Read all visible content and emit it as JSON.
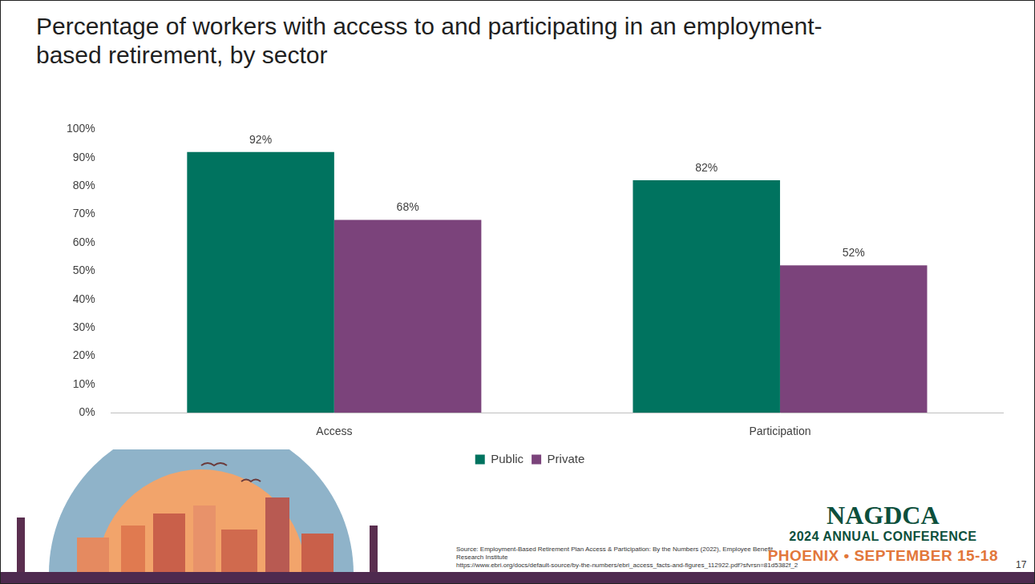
{
  "chart_data": {
    "type": "bar",
    "title": "Percentage of workers with access to and participating in an employment-based retirement, by sector",
    "categories": [
      "Access",
      "Participation"
    ],
    "series": [
      {
        "name": "Public",
        "color": "#00735f",
        "values": [
          92,
          82
        ],
        "value_labels": [
          "92%",
          "82%"
        ]
      },
      {
        "name": "Private",
        "color": "#7b437b",
        "values": [
          68,
          52
        ],
        "value_labels": [
          "68%",
          "52%"
        ]
      }
    ],
    "ylim": [
      0,
      100
    ],
    "yticks": [
      {
        "value": 0,
        "label": "0%"
      },
      {
        "value": 10,
        "label": "10%"
      },
      {
        "value": 20,
        "label": "20%"
      },
      {
        "value": 30,
        "label": "30%"
      },
      {
        "value": 40,
        "label": "40%"
      },
      {
        "value": 50,
        "label": "50%"
      },
      {
        "value": 60,
        "label": "60%"
      },
      {
        "value": 70,
        "label": "70%"
      },
      {
        "value": 80,
        "label": "80%"
      },
      {
        "value": 90,
        "label": "90%"
      },
      {
        "value": 100,
        "label": "100%"
      }
    ],
    "grid": false,
    "legend": "bottom",
    "data_labels": true,
    "source": "Source: Employment-Based Retirement Plan Access & Participation: By the Numbers (2022), Employee Benefit Research Institute",
    "source_url": "https://www.ebri.org/docs/default-source/by-the-numbers/ebri_access_facts-and-figures_112922.pdf?sfvrsn=81d5382f_2"
  },
  "footer": {
    "organization": "NAGDCA",
    "event": "2024 ANNUAL CONFERENCE",
    "location": "PHOENIX • SEPTEMBER 15-18",
    "page": "17"
  }
}
